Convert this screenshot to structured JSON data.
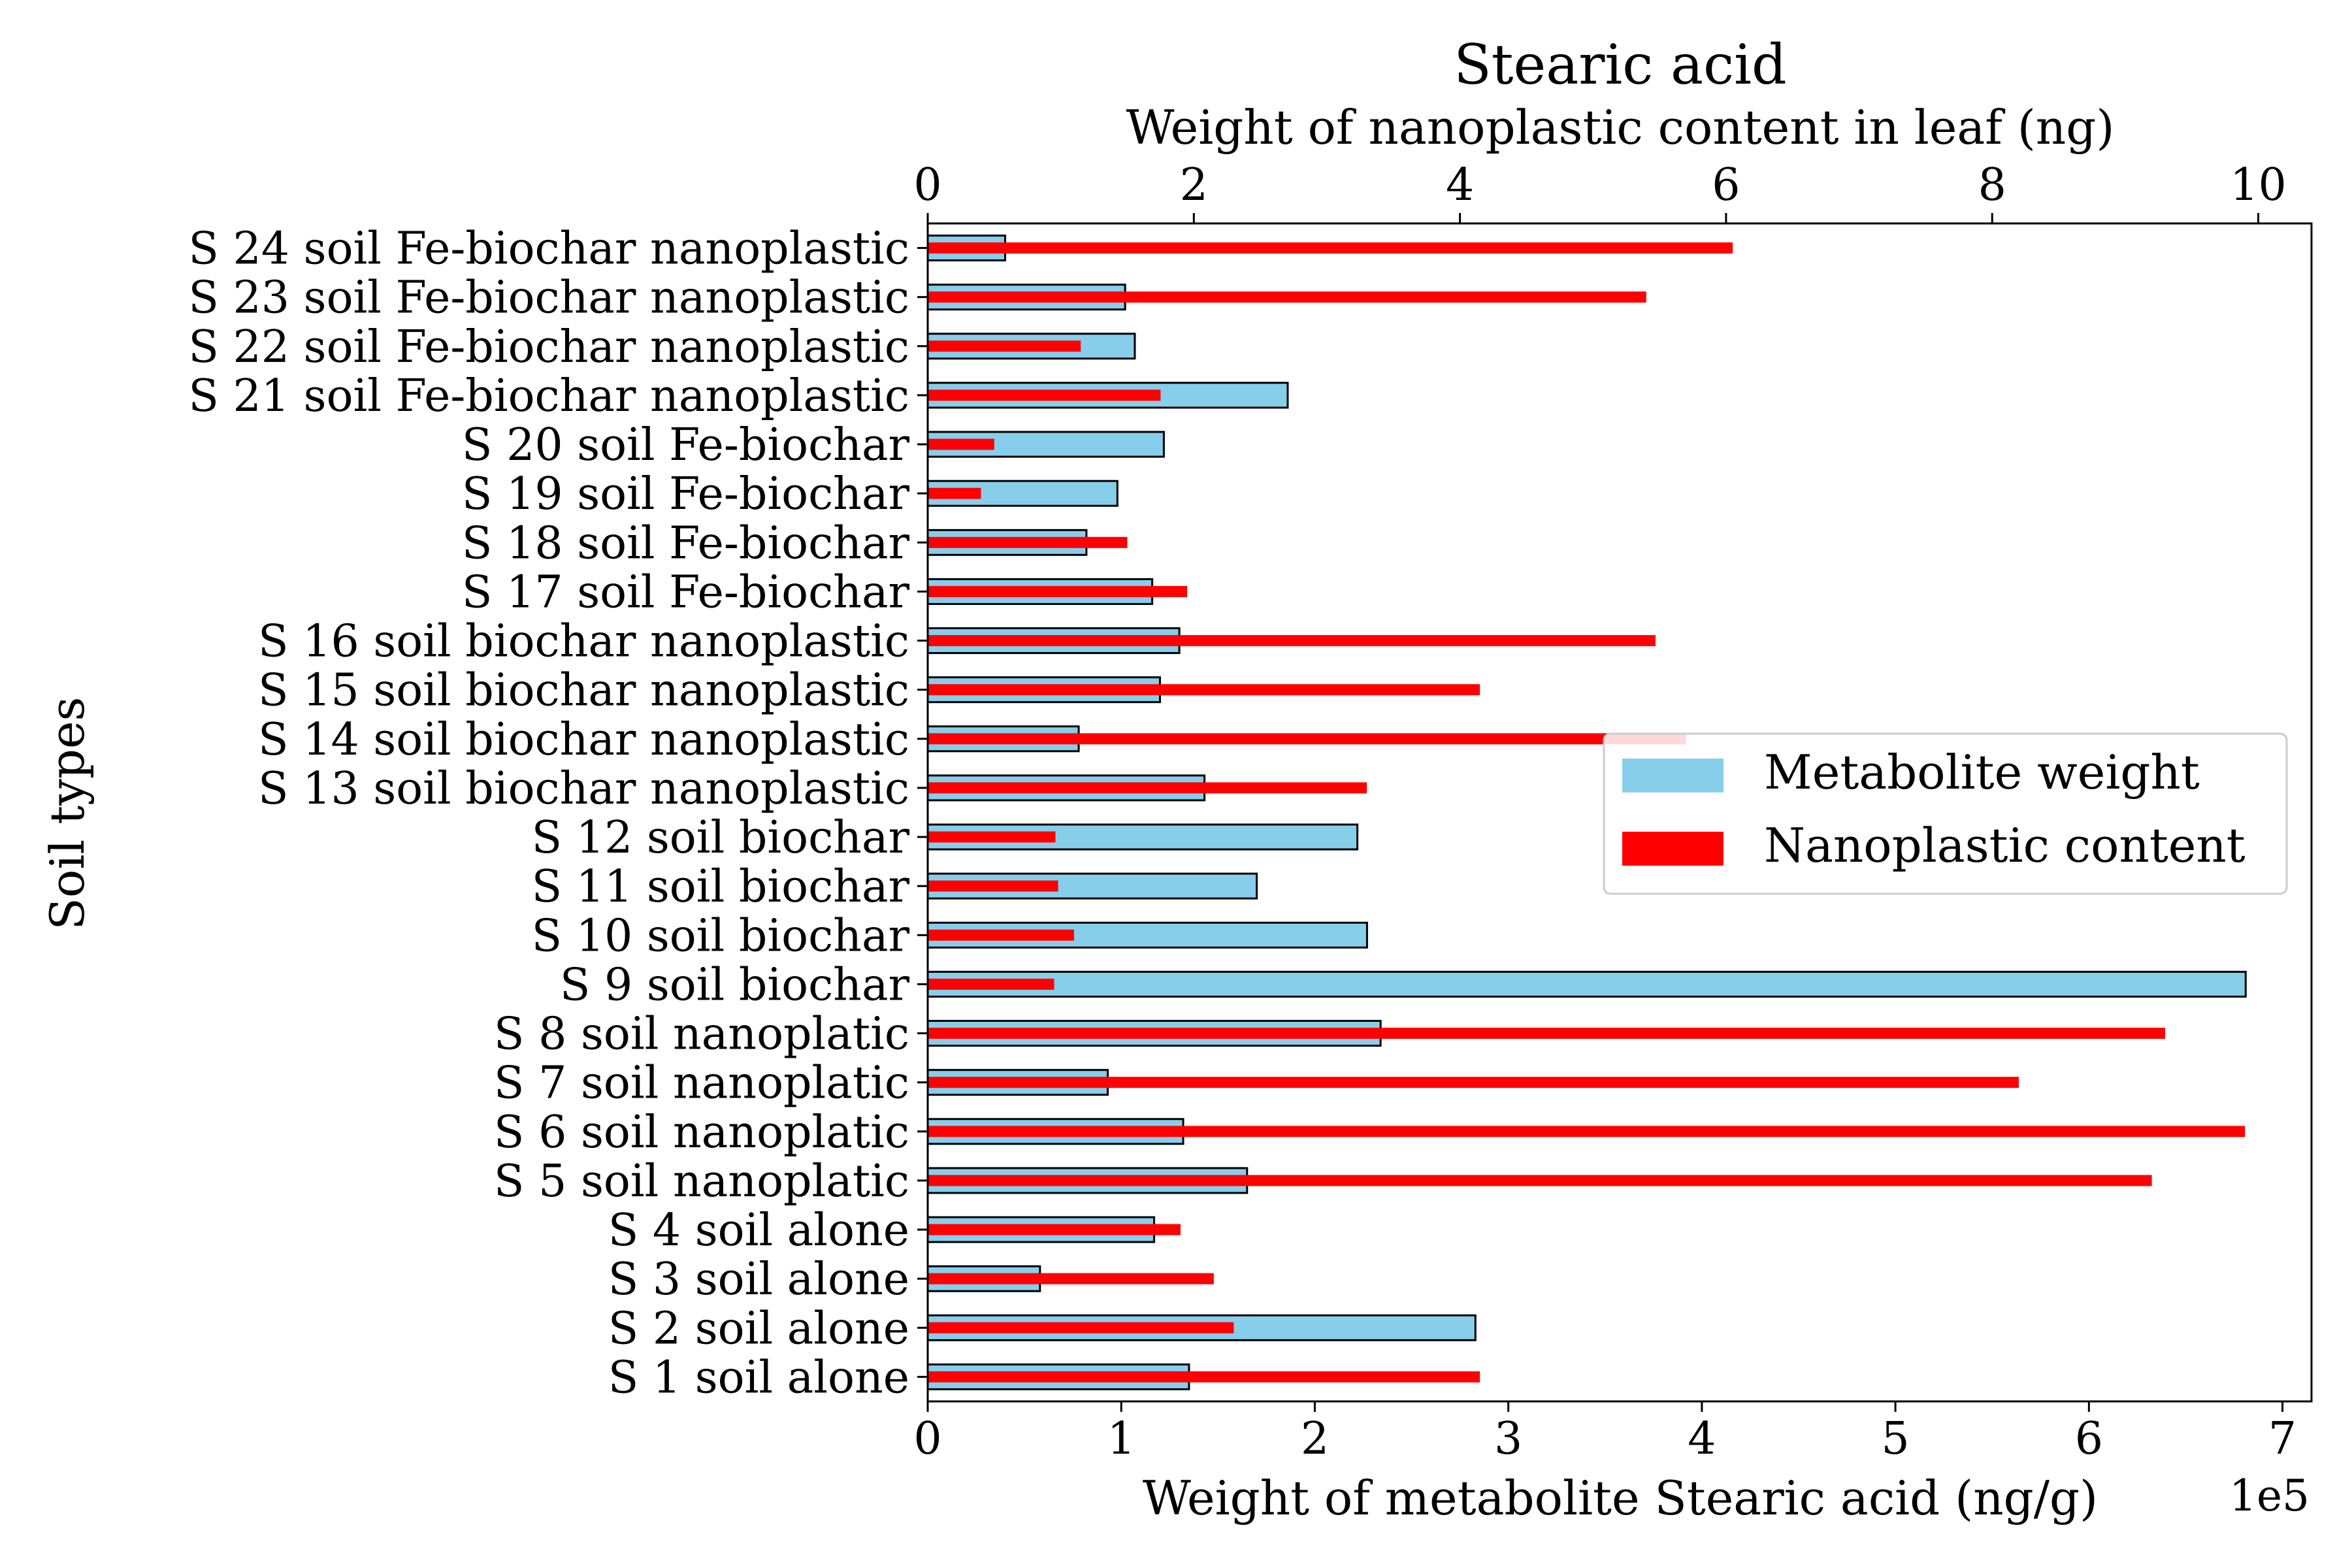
{
  "chart_data": {
    "type": "bar",
    "orientation": "horizontal",
    "title": "Stearic acid",
    "title_color": "#a52a2a",
    "ylabel": "Soil types",
    "xlabel_bottom": "Weight of metabolite Stearic acid (ng/g)",
    "xlabel_top": "Weight of nanoplastic content in leaf (ng)",
    "bottom_axis_offset_text": "1e5",
    "xlim_bottom": [
      0,
      7.15
    ],
    "xlim_top": [
      0,
      10.4
    ],
    "xticks_bottom": [
      "0",
      "1",
      "2",
      "3",
      "4",
      "5",
      "6",
      "7"
    ],
    "xticks_top": [
      "0",
      "2",
      "4",
      "6",
      "8",
      "10"
    ],
    "categories": [
      "S 1 soil alone",
      "S 2 soil alone",
      "S 3 soil alone",
      "S 4 soil alone",
      "S 5 soil nanoplatic",
      "S 6 soil nanoplatic",
      "S 7 soil nanoplatic",
      "S 8 soil nanoplatic",
      "S 9 soil biochar",
      "S 10 soil biochar",
      "S 11 soil biochar",
      "S 12 soil biochar",
      "S 13 soil biochar nanoplastic",
      "S 14 soil biochar nanoplastic",
      "S 15 soil biochar nanoplastic",
      "S 16 soil biochar nanoplastic",
      "S 17 soil Fe-biochar",
      "S 18 soil Fe-biochar",
      "S 19 soil Fe-biochar",
      "S 20 soil Fe-biochar",
      "S 21 soil Fe-biochar nanoplastic",
      "S 22 soil Fe-biochar nanoplastic",
      "S 23 soil Fe-biochar nanoplastic",
      "S 24 soil Fe-biochar nanoplastic"
    ],
    "series": [
      {
        "name": "Metabolite weight",
        "axis": "bottom",
        "unit_multiplier": "1e5",
        "color": "#87ceeb",
        "edgecolor": "#000000",
        "values": [
          1.35,
          2.83,
          0.58,
          1.17,
          1.65,
          1.32,
          0.93,
          2.34,
          6.81,
          2.27,
          1.7,
          2.22,
          1.43,
          0.78,
          1.2,
          1.3,
          1.16,
          0.82,
          0.98,
          1.22,
          1.86,
          1.07,
          1.02,
          0.4
        ]
      },
      {
        "name": "Nanoplastic content",
        "axis": "top",
        "color": "#ff0000",
        "values": [
          4.15,
          2.3,
          2.15,
          1.9,
          9.2,
          9.9,
          8.2,
          9.3,
          0.95,
          1.1,
          0.98,
          0.96,
          3.3,
          5.7,
          4.15,
          5.47,
          1.95,
          1.5,
          0.4,
          0.5,
          1.75,
          1.15,
          5.4,
          6.05
        ]
      }
    ],
    "legend": {
      "position": "center-right",
      "entries": [
        "Metabolite weight",
        "Nanoplastic content"
      ]
    },
    "grid": false
  }
}
